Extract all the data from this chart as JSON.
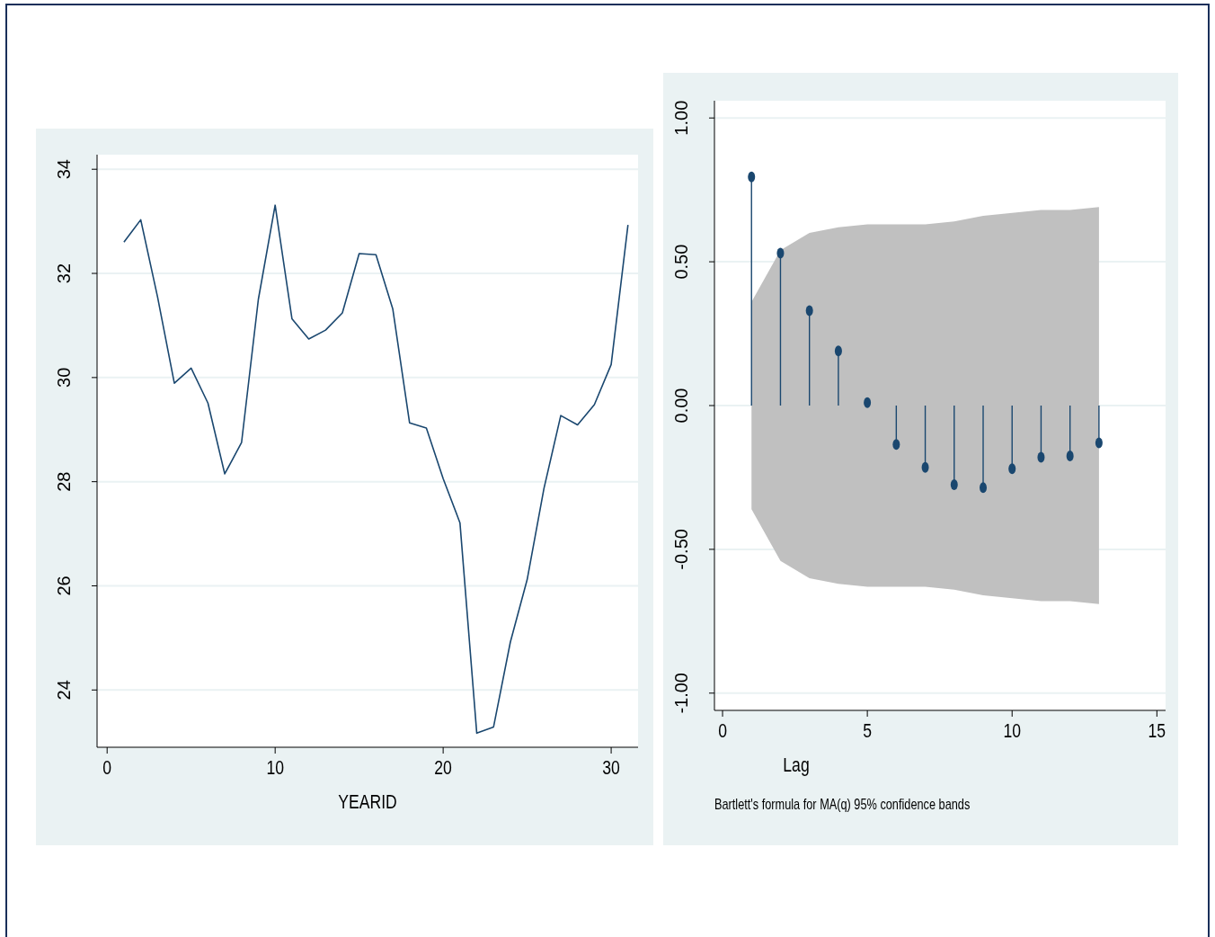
{
  "chart_data": [
    {
      "type": "line",
      "xlabel": "YEARID",
      "x": [
        1,
        2,
        3,
        4,
        5,
        6,
        7,
        8,
        9,
        10,
        11,
        12,
        13,
        14,
        15,
        16,
        17,
        18,
        19,
        20,
        21,
        22,
        23,
        24,
        25,
        26,
        27,
        28,
        29,
        30,
        31
      ],
      "series": [
        {
          "color": "#1a476f",
          "values": [
            32.6,
            33.03,
            31.55,
            29.89,
            30.18,
            29.51,
            28.15,
            28.75,
            31.5,
            33.31,
            31.13,
            30.74,
            30.91,
            31.24,
            32.38,
            32.36,
            31.32,
            29.13,
            29.03,
            28.06,
            27.21,
            23.17,
            23.29,
            24.92,
            26.12,
            27.87,
            29.27,
            29.09,
            29.48,
            30.25,
            32.93
          ]
        }
      ],
      "xlim": [
        -0.6,
        31.6
      ],
      "xticks": [
        0,
        10,
        20,
        30
      ],
      "ylim": [
        22.9,
        34.28
      ],
      "yticks": [
        24,
        26,
        28,
        30,
        32,
        34
      ],
      "grid": "y",
      "marker": "none"
    },
    {
      "type": "lollipop",
      "xlabel": "Lag",
      "annotations": [
        "Bartlett's formula for MA(q) 95% confidence bands"
      ],
      "series": [
        {
          "color": "#1a476f",
          "x": [
            1,
            2,
            3,
            4,
            5,
            6,
            7,
            8,
            9,
            10,
            11,
            12,
            13
          ],
          "values": [
            0.795,
            0.53,
            0.33,
            0.19,
            0.01,
            -0.135,
            -0.215,
            -0.275,
            -0.285,
            -0.22,
            -0.18,
            -0.175,
            -0.13
          ],
          "lower": [
            -0.36,
            -0.54,
            -0.6,
            -0.62,
            -0.63,
            -0.63,
            -0.63,
            -0.64,
            -0.66,
            -0.67,
            -0.68,
            -0.68,
            -0.69
          ],
          "upper": [
            0.36,
            0.54,
            0.6,
            0.62,
            0.63,
            0.63,
            0.63,
            0.64,
            0.66,
            0.67,
            0.68,
            0.68,
            0.69
          ]
        }
      ],
      "xlim": [
        -0.28,
        15.3
      ],
      "xticks": [
        0,
        5,
        10,
        15
      ],
      "ylim": [
        -1.06,
        1.06
      ],
      "yticks": [
        {
          "value": -1,
          "label": "-1.00"
        },
        {
          "value": -0.5,
          "label": "-0.50"
        },
        {
          "value": 0,
          "label": "0.00"
        },
        {
          "value": 0.5,
          "label": "0.50"
        },
        {
          "value": 1,
          "label": "1.00"
        }
      ],
      "grid": "y",
      "marker": "circle"
    }
  ]
}
